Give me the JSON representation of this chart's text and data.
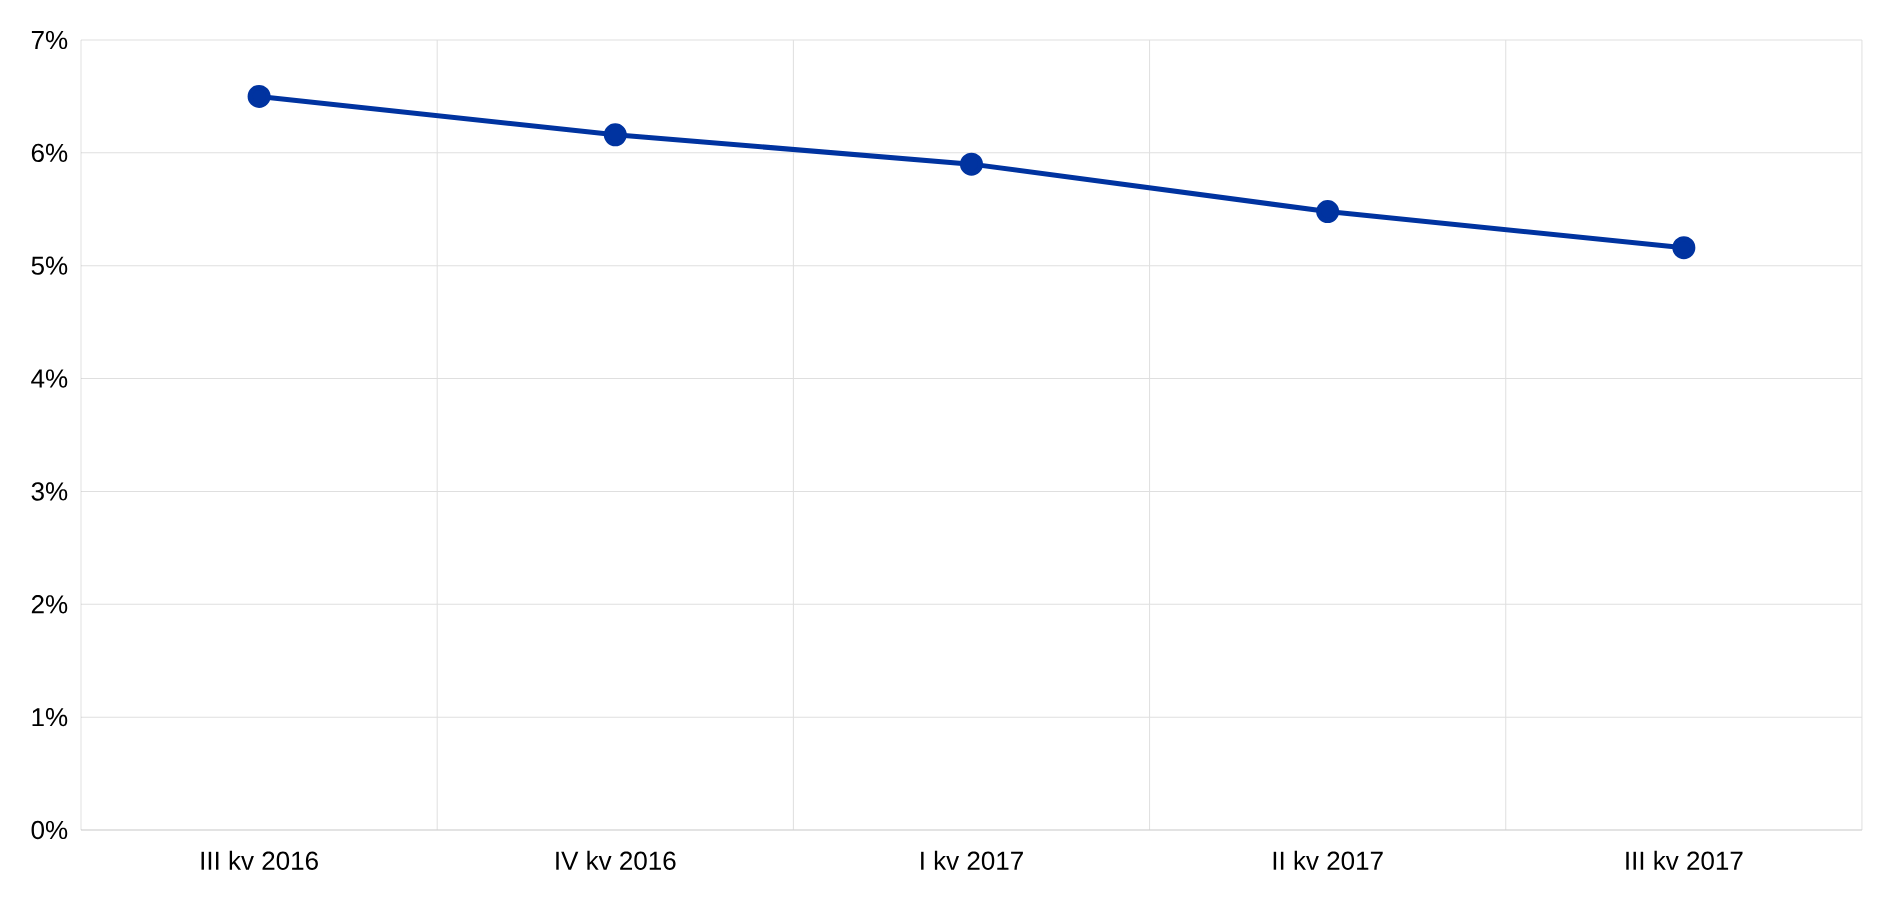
{
  "chart_data": {
    "type": "line",
    "categories": [
      "III kv 2016",
      "IV kv 2016",
      "I kv 2017",
      "II kv 2017",
      "III kv 2017"
    ],
    "series": [
      {
        "color": "#0033a0",
        "values": [
          6.5,
          6.16,
          5.9,
          5.48,
          5.16
        ]
      }
    ],
    "ylim": [
      0,
      7
    ],
    "yticks": [
      {
        "value": 0,
        "label": "0%"
      },
      {
        "value": 1,
        "label": "1%"
      },
      {
        "value": 2,
        "label": "2%"
      },
      {
        "value": 3,
        "label": "3%"
      },
      {
        "value": 4,
        "label": "4%"
      },
      {
        "value": 5,
        "label": "5%"
      },
      {
        "value": 6,
        "label": "6%"
      },
      {
        "value": 7,
        "label": "7%"
      }
    ],
    "grid": true,
    "marker": "circle",
    "line_style": "solid",
    "legend": false
  }
}
